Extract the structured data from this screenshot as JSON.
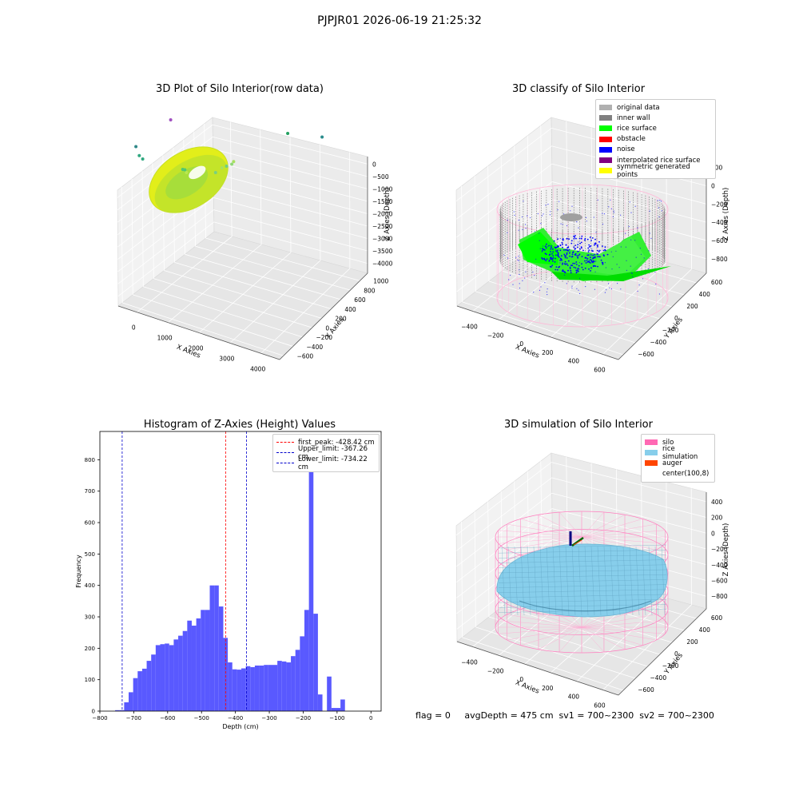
{
  "suptitle": "PJPJR01 2026-06-19 21:25:32",
  "status_text": "flag = 0     avgDepth = 475 cm  sv1 = 700~2300  sv2 = 700~2300",
  "colors": {
    "hist_bar": "#5050ff",
    "first_peak": "#ff0000",
    "limits": "#0000cc",
    "silo": "#ff69b4",
    "rice": "#87ceeb",
    "auger": "#ff4500",
    "inner_wall": "#808080",
    "rice_surface": "#00ff00",
    "noise": "#0000ff"
  },
  "chart_data": [
    {
      "type": "scatter",
      "title": "3D Plot of Silo Interior(row data)",
      "xlabel": "X Axies",
      "ylabel": "Y Axies",
      "zlabel": "Z Axies (Depth)",
      "x_ticks": [
        "0",
        "1000",
        "2000",
        "3000",
        "4000"
      ],
      "y_ticks": [
        "1000",
        "800",
        "600",
        "400",
        "200",
        "0",
        "−200",
        "−400",
        "−600"
      ],
      "z_ticks": [
        "0",
        "−500",
        "−1000",
        "−1500",
        "−2000",
        "−2500",
        "−3000",
        "−3500",
        "−4000"
      ],
      "grid": true,
      "main_cluster": {
        "x_center": 300,
        "y_center": 0,
        "radius": 700,
        "z": -500
      },
      "outliers": [
        {
          "x": 900,
          "y": 600,
          "z": -600,
          "color": "#a8e060"
        },
        {
          "x": 1100,
          "y": 650,
          "z": -800,
          "color": "#a8e060"
        },
        {
          "x": 1300,
          "y": 500,
          "z": -1000,
          "color": "#90d878"
        },
        {
          "x": 700,
          "y": 200,
          "z": -1000,
          "color": "#b8e850"
        },
        {
          "x": 1500,
          "y": 300,
          "z": -1300,
          "color": "#70d080"
        },
        {
          "x": 1400,
          "y": 200,
          "z": -1200,
          "color": "#78d080"
        },
        {
          "x": 1100,
          "y": -100,
          "z": -1700,
          "color": "#50c870"
        },
        {
          "x": 1150,
          "y": -100,
          "z": -1700,
          "color": "#50c870"
        },
        {
          "x": 300,
          "y": -200,
          "z": -2000,
          "color": "#30a880"
        },
        {
          "x": 300,
          "y": -250,
          "z": -2200,
          "color": "#30a880"
        },
        {
          "x": 300,
          "y": -300,
          "z": -2600,
          "color": "#308888"
        },
        {
          "x": 3800,
          "y": 300,
          "z": -3000,
          "color": "#2a8c8c"
        },
        {
          "x": 3300,
          "y": 100,
          "z": -3300,
          "color": "#22a060"
        },
        {
          "x": 1300,
          "y": -400,
          "z": -4000,
          "color": "#a050c0"
        }
      ]
    },
    {
      "type": "scatter",
      "title": "3D classify of Silo Interior",
      "xlabel": "X Axies",
      "ylabel": "Y Axies",
      "zlabel": "Z Axies (Depth)",
      "x_ticks": [
        "−400",
        "−200",
        "0",
        "200",
        "400",
        "600"
      ],
      "y_ticks": [
        "600",
        "400",
        "200",
        "0",
        "−200",
        "−400",
        "−600"
      ],
      "z_ticks": [
        "200",
        "0",
        "−200",
        "−400",
        "−600",
        "−800"
      ],
      "grid": true,
      "legend_position": "top-right",
      "legend": [
        {
          "label": "original data",
          "color": "#b0b0b0"
        },
        {
          "label": "inner wall",
          "color": "#808080"
        },
        {
          "label": "rice surface",
          "color": "#00ff00"
        },
        {
          "label": "obstacle",
          "color": "#ff0000"
        },
        {
          "label": "noise",
          "color": "#0000ff"
        },
        {
          "label": "interpolated rice surface",
          "color": "#800080"
        },
        {
          "label": "symmetric generated points",
          "color": "#ffff00"
        }
      ]
    },
    {
      "type": "bar",
      "title": "Histogram of Z-Axies (Height) Values",
      "xlabel": "Depth (cm)",
      "ylabel": "Frequency",
      "xlim": [
        -800,
        30
      ],
      "ylim": [
        0,
        890
      ],
      "x_ticks": [
        -800,
        -700,
        -600,
        -500,
        -400,
        -300,
        -200,
        -100,
        0
      ],
      "x_tick_labels": [
        "−800",
        "−700",
        "−600",
        "−500",
        "−400",
        "−300",
        "−200",
        "−100",
        "0"
      ],
      "y_ticks": [
        0,
        100,
        200,
        300,
        400,
        500,
        600,
        700,
        800
      ],
      "bin_width": 13.3,
      "bins_start": -755,
      "values": [
        3,
        3,
        28,
        60,
        105,
        127,
        135,
        160,
        180,
        210,
        213,
        215,
        210,
        228,
        240,
        255,
        288,
        272,
        295,
        322,
        322,
        400,
        400,
        333,
        233,
        155,
        133,
        132,
        136,
        143,
        140,
        145,
        145,
        147,
        147,
        147,
        160,
        158,
        155,
        175,
        195,
        238,
        322,
        850,
        310,
        53,
        0,
        110,
        10,
        10,
        37
      ],
      "vlines": [
        {
          "label": "first_peak: -428.42 cm",
          "x": -428.42,
          "color": "#ff0000"
        },
        {
          "label": "Upper_limit: -367.26 cm",
          "x": -367.26,
          "color": "#0000cc"
        },
        {
          "label": "Lower_limit: -734.22 cm",
          "x": -734.22,
          "color": "#0000cc"
        }
      ],
      "legend_position": "top-right"
    },
    {
      "type": "surface",
      "title": "3D simulation of Silo Interior",
      "xlabel": "X Axies",
      "ylabel": "Y Axies",
      "zlabel": "Z Axies (Depth)",
      "x_ticks": [
        "−400",
        "−200",
        "0",
        "200",
        "400",
        "600"
      ],
      "y_ticks": [
        "600",
        "400",
        "200",
        "0",
        "−200",
        "−400",
        "−600"
      ],
      "z_ticks": [
        "400",
        "200",
        "0",
        "−200",
        "−400",
        "−600",
        "−800"
      ],
      "grid": true,
      "legend_position": "top-right",
      "legend": [
        {
          "label": "silo",
          "color": "#ff69b4"
        },
        {
          "label": "rice simulation",
          "color": "#87ceeb"
        },
        {
          "label": "auger",
          "color": "#ff4500"
        },
        {
          "label": "center(100,8)",
          "color": "none"
        }
      ]
    }
  ]
}
